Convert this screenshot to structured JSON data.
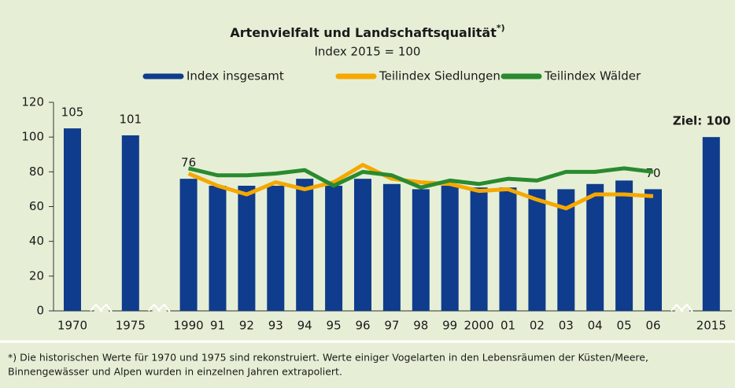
{
  "chart_data": {
    "type": "bar",
    "title": "Artenvielfalt und Landschaftsqualität",
    "title_note": "*)",
    "subtitle": "Index 2015 = 100",
    "footnote": [
      "*) Die historischen Werte für 1970 und 1975 sind rekonstruiert. Werte einiger Vogelarten in den Lebensräumen der Küsten/Meere,",
      "Binnengewässer und Alpen wurden in einzelnen Jahren extrapoliert."
    ],
    "categories": [
      "1970",
      "1975",
      "1990",
      "91",
      "92",
      "93",
      "94",
      "95",
      "96",
      "97",
      "98",
      "99",
      "2000",
      "01",
      "02",
      "03",
      "04",
      "05",
      "06",
      "2015"
    ],
    "series": [
      {
        "name": "Index insgesamt",
        "type": "bar",
        "color": "#0f3c8c",
        "values": [
          105,
          101,
          76,
          72,
          72,
          72,
          76,
          72,
          76,
          73,
          70,
          72,
          71,
          71,
          70,
          70,
          73,
          75,
          70,
          100
        ],
        "value_labels": [
          "105",
          "101",
          "76",
          null,
          null,
          null,
          null,
          null,
          null,
          null,
          null,
          null,
          null,
          null,
          null,
          null,
          null,
          null,
          "70",
          "Ziel: 100"
        ]
      },
      {
        "name": "Teilindex Siedlungen",
        "type": "line",
        "color": "#f5a800",
        "values": [
          null,
          null,
          79,
          72,
          67,
          74,
          70,
          74,
          84,
          76,
          74,
          73,
          69,
          70,
          64,
          59,
          67,
          67,
          66,
          null
        ]
      },
      {
        "name": "Teilindex Wälder",
        "type": "line",
        "color": "#2a8a2f",
        "values": [
          null,
          null,
          82,
          78,
          78,
          79,
          81,
          72,
          80,
          78,
          71,
          75,
          73,
          76,
          75,
          80,
          80,
          82,
          80,
          null
        ]
      }
    ],
    "ylim": [
      0,
      120
    ],
    "yticks": [
      0,
      20,
      40,
      60,
      80,
      100,
      120
    ]
  }
}
